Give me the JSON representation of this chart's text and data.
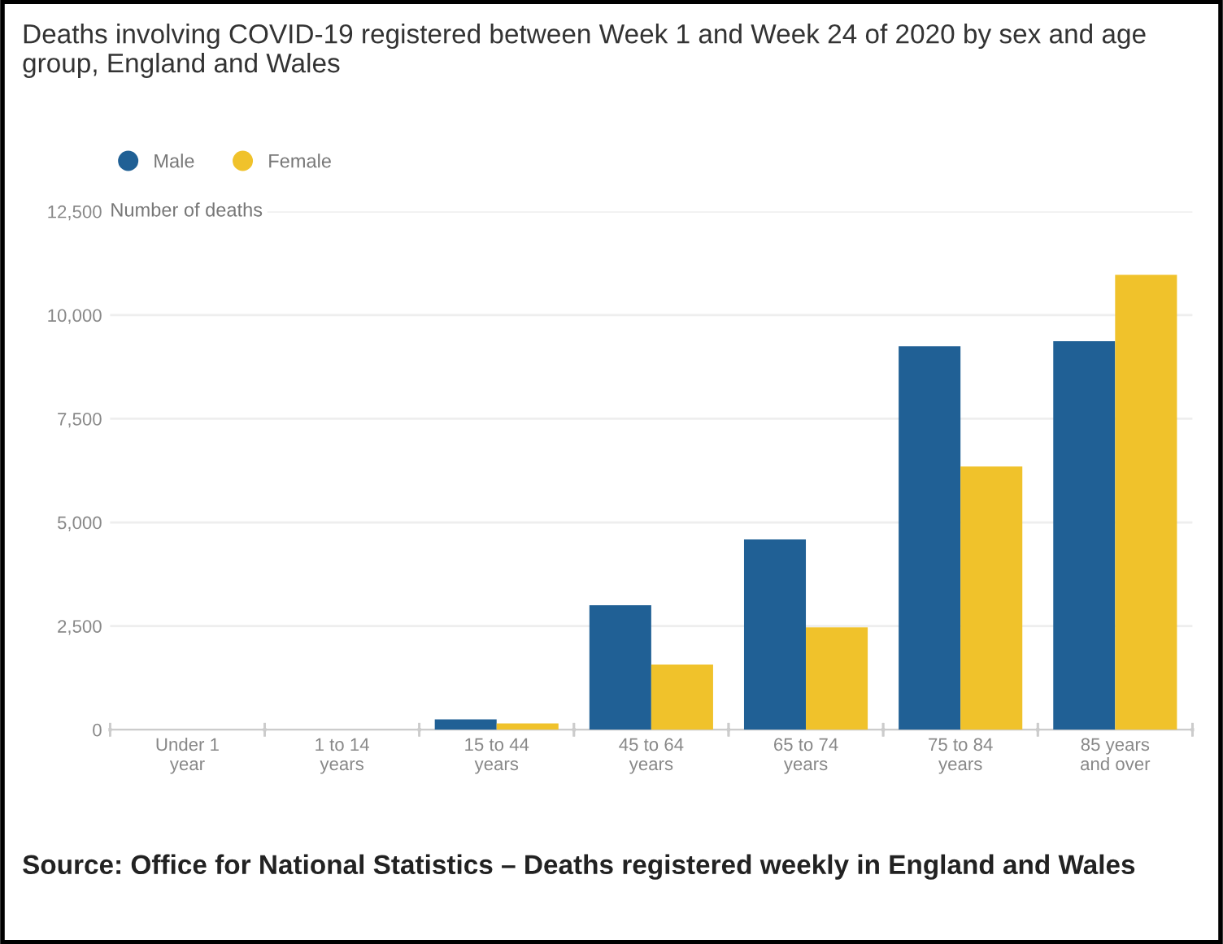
{
  "chart_data": {
    "type": "bar",
    "title": "Deaths involving COVID-19 registered between Week 1 and Week 24 of 2020 by sex and age group, England and Wales",
    "ylabel": "Number of deaths",
    "categories": [
      "Under 1\nyear",
      "1 to 14\nyears",
      "15 to 44\nyears",
      "45 to 64\nyears",
      "65 to 74\nyears",
      "75 to 84\nyears",
      "85 years\nand over"
    ],
    "series": [
      {
        "name": "Male",
        "color": "#206095",
        "values": [
          0,
          0,
          250,
          3000,
          4590,
          9250,
          9370
        ]
      },
      {
        "name": "Female",
        "color": "#f0c22b",
        "values": [
          0,
          0,
          150,
          1570,
          2470,
          6350,
          10970
        ]
      }
    ],
    "ylim": [
      0,
      12500
    ],
    "yticks": [
      {
        "value": 0,
        "label": "0"
      },
      {
        "value": 2500,
        "label": "2,500"
      },
      {
        "value": 5000,
        "label": "5,000"
      },
      {
        "value": 7500,
        "label": "7,500"
      },
      {
        "value": 10000,
        "label": "10,000"
      },
      {
        "value": 12500,
        "label": "12,500"
      }
    ],
    "grid": "y",
    "legend": "top left",
    "annotations": [
      "Source: Office for National Statistics – Deaths registered weekly in England and Wales"
    ]
  }
}
